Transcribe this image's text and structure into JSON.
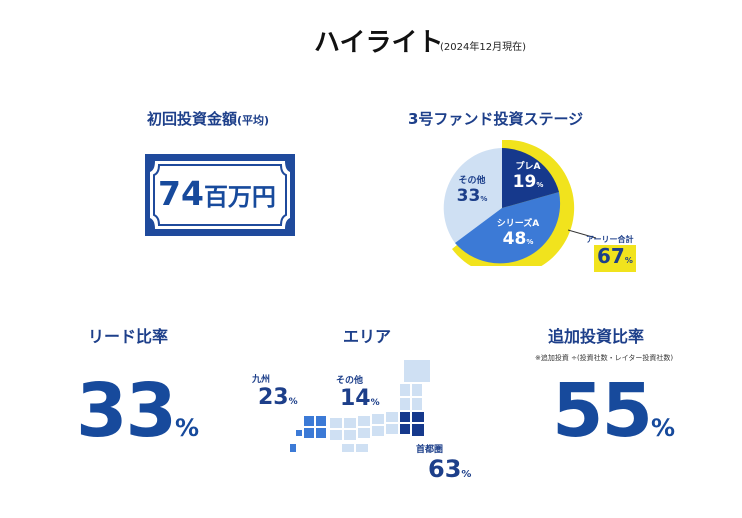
{
  "header": {
    "title": "ハイライト",
    "subtitle": "(2024年12月現在)"
  },
  "initial_investment": {
    "heading": "初回投資金額",
    "heading_suffix": "(平均)",
    "value": "74",
    "unit": "百万円"
  },
  "fund_stage": {
    "heading": "3号ファンド投資ステージ",
    "segments": [
      {
        "label": "プレA",
        "value": "19",
        "unit": "%"
      },
      {
        "label": "シリーズA",
        "value": "48",
        "unit": "%"
      },
      {
        "label": "その他",
        "value": "33",
        "unit": "%"
      }
    ],
    "callout": {
      "label": "アーリー合計",
      "value": "67",
      "unit": "%"
    },
    "colors": {
      "pre_a": "#16398c",
      "series_a": "#3c7ad6",
      "other": "#cfe0f3",
      "ring": "#f1e31d"
    }
  },
  "lead_ratio": {
    "heading": "リード比率",
    "value": "33",
    "unit": "%"
  },
  "area": {
    "heading": "エリア",
    "kyushu": {
      "label": "九州",
      "value": "23",
      "unit": "%"
    },
    "other": {
      "label": "その他",
      "value": "14",
      "unit": "%"
    },
    "metro": {
      "label": "首都圏",
      "value": "63",
      "unit": "%"
    }
  },
  "follow_on": {
    "heading": "追加投資比率",
    "note": "※追加投資 ÷(投資社数・レイター投資社数)",
    "value": "55",
    "unit": "%"
  }
}
